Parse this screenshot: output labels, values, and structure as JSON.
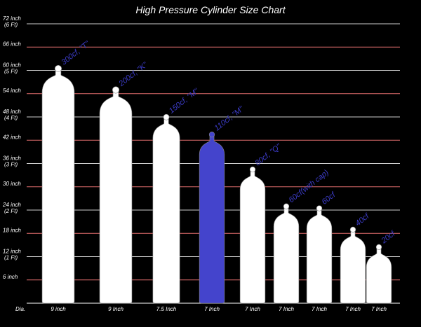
{
  "chart_data": {
    "type": "bar",
    "title": "High Pressure Cylinder Size Chart",
    "y_unit": "inch",
    "ylim": [
      0,
      72
    ],
    "y_ticks": [
      {
        "value": 6,
        "label": "6 inch",
        "sub": ""
      },
      {
        "value": 12,
        "label": "12 inch",
        "sub": "(1 Ft)"
      },
      {
        "value": 18,
        "label": "18 inch",
        "sub": ""
      },
      {
        "value": 24,
        "label": "24 inch",
        "sub": "(2 Ft)"
      },
      {
        "value": 30,
        "label": "30 inch",
        "sub": ""
      },
      {
        "value": 36,
        "label": "36 inch",
        "sub": "(3 Ft)"
      },
      {
        "value": 42,
        "label": "42 inch",
        "sub": ""
      },
      {
        "value": 48,
        "label": "48 inch",
        "sub": "(4 Ft)"
      },
      {
        "value": 54,
        "label": "54 inch",
        "sub": ""
      },
      {
        "value": 60,
        "label": "60 inch",
        "sub": "(5 Ft)"
      },
      {
        "value": 66,
        "label": "66 inch",
        "sub": ""
      },
      {
        "value": 72,
        "label": "72 inch",
        "sub": "(6 Ft)"
      }
    ],
    "x_axis_label": "Dia.",
    "cylinders": [
      {
        "label": "300cf, \"T\"",
        "height": 61,
        "diameter": 9,
        "diameter_label": "9 inch",
        "highlight": false
      },
      {
        "label": "200cf, \"K\"",
        "height": 55.5,
        "diameter": 9,
        "diameter_label": "9 Inch",
        "highlight": false
      },
      {
        "label": "150cf, \"M\"",
        "height": 48.5,
        "diameter": 7.5,
        "diameter_label": "7.5 Inch",
        "highlight": false
      },
      {
        "label": "110cf, \"M\"",
        "height": 44,
        "diameter": 7,
        "diameter_label": "7 Inch",
        "highlight": true
      },
      {
        "label": "80cf, \"Q\"",
        "height": 35,
        "diameter": 7,
        "diameter_label": "7 Inch",
        "highlight": false
      },
      {
        "label": "60cf(with cap)",
        "height": 25.5,
        "diameter": 7,
        "diameter_label": "7 Inch",
        "highlight": false
      },
      {
        "label": "60cf",
        "height": 25,
        "diameter": 7,
        "diameter_label": "7 Inch",
        "highlight": false
      },
      {
        "label": "40cf",
        "height": 19.5,
        "diameter": 7,
        "diameter_label": "7 Inch",
        "highlight": false
      },
      {
        "label": "20cf",
        "height": 15,
        "diameter": 7,
        "diameter_label": "7 Inch",
        "highlight": false
      }
    ],
    "colors": {
      "background": "#000000",
      "gridline_major": "#cccccc",
      "gridline_minor": "#e06c6c",
      "cylinder": "#ffffff",
      "highlight": "#4444cc",
      "label": "#3c3cc8",
      "text": "#ffffff"
    }
  }
}
